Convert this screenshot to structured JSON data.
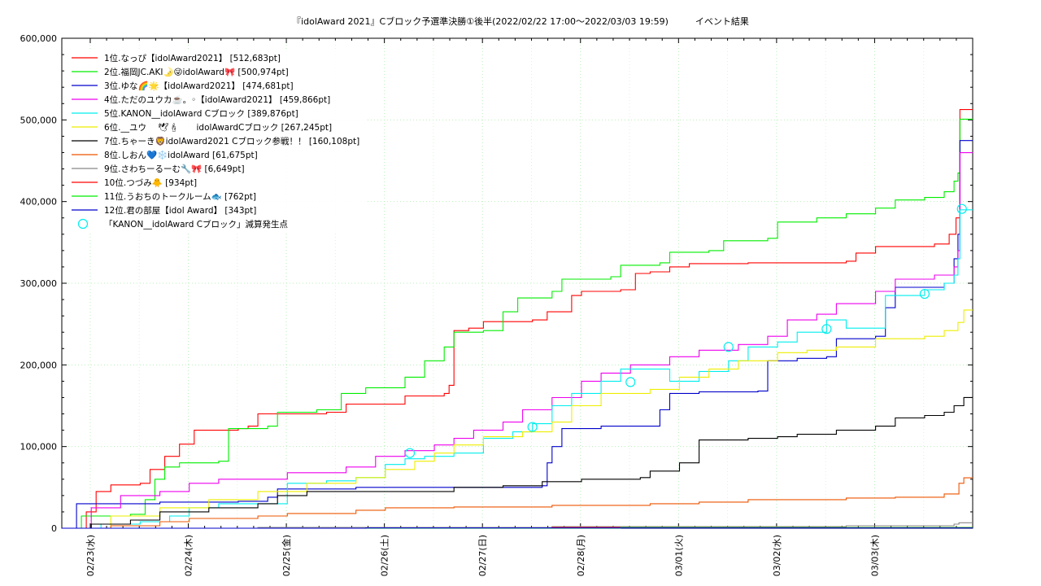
{
  "chart_data": {
    "type": "line",
    "title": "『idolAward 2021』Cブロック予選準決勝①後半(2022/02/22 17:00～2022/03/03 19:59)　　　イベント結果",
    "xlabel": "",
    "ylabel": "",
    "x_tick_labels": [
      "02/23(水)",
      "02/24(木)",
      "02/25(金)",
      "02/26(土)",
      "02/27(日)",
      "02/28(月)",
      "03/01(火)",
      "03/02(水)",
      "03/03(木)"
    ],
    "y_tick_labels": [
      "0",
      "100,000",
      "200,000",
      "300,000",
      "400,000",
      "500,000",
      "600,000"
    ],
    "x_range_days": [
      0,
      9.29
    ],
    "ylim": [
      0,
      600000
    ],
    "grid": true,
    "legend_position": "top-left",
    "series": [
      {
        "name": "1位.なっぴ【idolAward2021】 [512,683pt]",
        "color": "#ff0000",
        "points": [
          [
            0,
            0
          ],
          [
            0.25,
            20000
          ],
          [
            0.35,
            45000
          ],
          [
            0.5,
            53000
          ],
          [
            0.8,
            55000
          ],
          [
            0.9,
            72000
          ],
          [
            1.05,
            88000
          ],
          [
            1.2,
            103000
          ],
          [
            1.35,
            120000
          ],
          [
            1.8,
            122000
          ],
          [
            1.9,
            125000
          ],
          [
            2.0,
            140000
          ],
          [
            2.5,
            140000
          ],
          [
            2.7,
            142000
          ],
          [
            2.9,
            152000
          ],
          [
            3.3,
            152000
          ],
          [
            3.5,
            162000
          ],
          [
            3.9,
            165000
          ],
          [
            3.95,
            175000
          ],
          [
            4.0,
            242000
          ],
          [
            4.15,
            245000
          ],
          [
            4.3,
            253000
          ],
          [
            4.8,
            255000
          ],
          [
            4.95,
            265000
          ],
          [
            5.2,
            285000
          ],
          [
            5.3,
            290000
          ],
          [
            5.7,
            292000
          ],
          [
            5.85,
            312000
          ],
          [
            6.0,
            314000
          ],
          [
            6.2,
            320000
          ],
          [
            6.4,
            324000
          ],
          [
            7.0,
            325000
          ],
          [
            8.0,
            327000
          ],
          [
            8.1,
            337000
          ],
          [
            8.3,
            345000
          ],
          [
            8.9,
            348000
          ],
          [
            9.05,
            360000
          ],
          [
            9.12,
            380000
          ],
          [
            9.16,
            512683
          ],
          [
            9.29,
            512683
          ]
        ]
      },
      {
        "name": "2位.福岡JC.AKI🌛😜idolAward🎀 [500,974pt]",
        "color": "#00ee00",
        "points": [
          [
            0,
            0
          ],
          [
            0.2,
            15000
          ],
          [
            0.7,
            17000
          ],
          [
            0.85,
            35000
          ],
          [
            0.95,
            60000
          ],
          [
            1.05,
            75000
          ],
          [
            1.2,
            80000
          ],
          [
            1.6,
            82000
          ],
          [
            1.7,
            122000
          ],
          [
            2.1,
            125000
          ],
          [
            2.2,
            142000
          ],
          [
            2.6,
            145000
          ],
          [
            2.85,
            165000
          ],
          [
            3.1,
            172000
          ],
          [
            3.5,
            185000
          ],
          [
            3.7,
            205000
          ],
          [
            3.9,
            222000
          ],
          [
            4.0,
            240000
          ],
          [
            4.3,
            242000
          ],
          [
            4.5,
            265000
          ],
          [
            4.65,
            282000
          ],
          [
            5.0,
            290000
          ],
          [
            5.1,
            305000
          ],
          [
            5.6,
            308000
          ],
          [
            5.7,
            322000
          ],
          [
            6.1,
            325000
          ],
          [
            6.2,
            338000
          ],
          [
            6.6,
            340000
          ],
          [
            6.75,
            352000
          ],
          [
            7.2,
            355000
          ],
          [
            7.3,
            375000
          ],
          [
            7.7,
            380000
          ],
          [
            8.0,
            385000
          ],
          [
            8.3,
            392000
          ],
          [
            8.5,
            402000
          ],
          [
            8.8,
            405000
          ],
          [
            9.0,
            412000
          ],
          [
            9.1,
            425000
          ],
          [
            9.14,
            435000
          ],
          [
            9.16,
            500974
          ],
          [
            9.29,
            500974
          ]
        ]
      },
      {
        "name": "3位.ゆな🌈🌟【idolAward2021】 [474,681pt]",
        "color": "#0000cc",
        "points": [
          [
            0,
            0
          ],
          [
            0.15,
            30000
          ],
          [
            1.0,
            32000
          ],
          [
            1.8,
            33000
          ],
          [
            2.1,
            38000
          ],
          [
            2.2,
            48000
          ],
          [
            3.0,
            50000
          ],
          [
            4.0,
            50000
          ],
          [
            4.9,
            52000
          ],
          [
            4.95,
            80000
          ],
          [
            5.0,
            100000
          ],
          [
            5.1,
            122000
          ],
          [
            5.5,
            125000
          ],
          [
            6.0,
            125000
          ],
          [
            6.1,
            145000
          ],
          [
            6.2,
            165000
          ],
          [
            6.5,
            167000
          ],
          [
            7.1,
            168000
          ],
          [
            7.2,
            205000
          ],
          [
            7.5,
            208000
          ],
          [
            7.8,
            210000
          ],
          [
            7.9,
            232000
          ],
          [
            8.3,
            235000
          ],
          [
            8.4,
            270000
          ],
          [
            8.5,
            295000
          ],
          [
            9.0,
            300000
          ],
          [
            9.1,
            330000
          ],
          [
            9.14,
            360000
          ],
          [
            9.16,
            474681
          ],
          [
            9.29,
            474681
          ]
        ]
      },
      {
        "name": "4位.ただのユウカ☕️。◦【idolAward2021】 [459,866pt]",
        "color": "#ee00ee",
        "points": [
          [
            0,
            0
          ],
          [
            0.3,
            25000
          ],
          [
            0.6,
            40000
          ],
          [
            1.0,
            45000
          ],
          [
            1.3,
            55000
          ],
          [
            1.6,
            60000
          ],
          [
            2.3,
            68000
          ],
          [
            2.9,
            75000
          ],
          [
            3.2,
            88000
          ],
          [
            3.5,
            95000
          ],
          [
            3.8,
            102000
          ],
          [
            4.0,
            110000
          ],
          [
            4.2,
            120000
          ],
          [
            4.5,
            130000
          ],
          [
            4.7,
            145000
          ],
          [
            5.0,
            160000
          ],
          [
            5.3,
            180000
          ],
          [
            5.5,
            190000
          ],
          [
            5.8,
            200000
          ],
          [
            6.2,
            210000
          ],
          [
            6.5,
            218000
          ],
          [
            6.9,
            225000
          ],
          [
            7.2,
            235000
          ],
          [
            7.4,
            255000
          ],
          [
            7.7,
            262000
          ],
          [
            7.9,
            275000
          ],
          [
            8.3,
            290000
          ],
          [
            8.5,
            305000
          ],
          [
            8.9,
            310000
          ],
          [
            9.1,
            320000
          ],
          [
            9.14,
            340000
          ],
          [
            9.16,
            459866
          ],
          [
            9.29,
            459866
          ]
        ]
      },
      {
        "name": "5位.KANON__idolAward Cブロック [389,876pt]",
        "color": "#00eeee",
        "points": [
          [
            0,
            0
          ],
          [
            0.4,
            5000
          ],
          [
            0.8,
            8000
          ],
          [
            1.1,
            15000
          ],
          [
            1.3,
            25000
          ],
          [
            1.6,
            30000
          ],
          [
            2.3,
            55000
          ],
          [
            2.7,
            58000
          ],
          [
            3.0,
            62000
          ],
          [
            3.3,
            78000
          ],
          [
            3.5,
            85000
          ],
          [
            3.7,
            88000
          ],
          [
            4.0,
            92000
          ],
          [
            4.3,
            110000
          ],
          [
            4.6,
            118000
          ],
          [
            4.8,
            128000
          ],
          [
            5.0,
            150000
          ],
          [
            5.2,
            165000
          ],
          [
            5.5,
            180000
          ],
          [
            5.7,
            195000
          ],
          [
            6.2,
            180000
          ],
          [
            6.5,
            192000
          ],
          [
            6.8,
            205000
          ],
          [
            7.0,
            222000
          ],
          [
            7.3,
            228000
          ],
          [
            7.5,
            240000
          ],
          [
            7.8,
            255000
          ],
          [
            8.0,
            245000
          ],
          [
            8.4,
            285000
          ],
          [
            8.8,
            292000
          ],
          [
            9.0,
            300000
          ],
          [
            9.1,
            310000
          ],
          [
            9.14,
            330000
          ],
          [
            9.16,
            389876
          ],
          [
            9.29,
            389876
          ]
        ]
      },
      {
        "name": "6位.__ユウ　 🕊🕯　　idolAwardCブロック [267,245pt]",
        "color": "#eeee00",
        "points": [
          [
            0,
            0
          ],
          [
            0.5,
            15000
          ],
          [
            1.0,
            25000
          ],
          [
            1.5,
            35000
          ],
          [
            2.0,
            45000
          ],
          [
            2.5,
            55000
          ],
          [
            3.0,
            62000
          ],
          [
            3.3,
            72000
          ],
          [
            3.6,
            82000
          ],
          [
            3.8,
            92000
          ],
          [
            4.0,
            102000
          ],
          [
            4.3,
            112000
          ],
          [
            4.7,
            118000
          ],
          [
            5.0,
            130000
          ],
          [
            5.2,
            150000
          ],
          [
            5.5,
            165000
          ],
          [
            6.0,
            170000
          ],
          [
            6.3,
            185000
          ],
          [
            6.6,
            195000
          ],
          [
            6.9,
            205000
          ],
          [
            7.3,
            215000
          ],
          [
            7.6,
            218000
          ],
          [
            7.9,
            222000
          ],
          [
            8.3,
            232000
          ],
          [
            8.8,
            235000
          ],
          [
            9.0,
            242000
          ],
          [
            9.14,
            252000
          ],
          [
            9.2,
            267245
          ],
          [
            9.29,
            267245
          ]
        ]
      },
      {
        "name": "7位.ちゃーき🦁idolAward2021 Cブロック参戦！！ [160,108pt]",
        "color": "#000000",
        "points": [
          [
            0,
            0
          ],
          [
            0.3,
            5000
          ],
          [
            0.7,
            10000
          ],
          [
            1.0,
            20000
          ],
          [
            1.5,
            25000
          ],
          [
            2.0,
            30000
          ],
          [
            2.2,
            40000
          ],
          [
            2.5,
            45000
          ],
          [
            3.0,
            45000
          ],
          [
            3.5,
            45000
          ],
          [
            4.0,
            50000
          ],
          [
            4.5,
            52000
          ],
          [
            4.9,
            57000
          ],
          [
            5.3,
            60000
          ],
          [
            5.9,
            62000
          ],
          [
            6.0,
            70000
          ],
          [
            6.3,
            80000
          ],
          [
            6.5,
            108000
          ],
          [
            7.0,
            110000
          ],
          [
            7.3,
            112000
          ],
          [
            7.5,
            115000
          ],
          [
            7.9,
            120000
          ],
          [
            8.3,
            125000
          ],
          [
            8.5,
            135000
          ],
          [
            8.8,
            138000
          ],
          [
            9.0,
            142000
          ],
          [
            9.1,
            150000
          ],
          [
            9.2,
            160108
          ],
          [
            9.29,
            160108
          ]
        ]
      },
      {
        "name": "8位.しおん💙❄️idolAward [61,675pt]",
        "color": "#ee5500",
        "points": [
          [
            0,
            0
          ],
          [
            0.5,
            3000
          ],
          [
            1.0,
            8000
          ],
          [
            1.3,
            12000
          ],
          [
            2.0,
            15000
          ],
          [
            2.3,
            18000
          ],
          [
            3.0,
            22000
          ],
          [
            3.3,
            25000
          ],
          [
            4.0,
            26000
          ],
          [
            5.0,
            28000
          ],
          [
            6.0,
            30000
          ],
          [
            6.5,
            32000
          ],
          [
            7.0,
            35000
          ],
          [
            7.5,
            35000
          ],
          [
            8.0,
            37000
          ],
          [
            8.5,
            38000
          ],
          [
            9.0,
            42000
          ],
          [
            9.15,
            55000
          ],
          [
            9.2,
            61675
          ],
          [
            9.29,
            61675
          ]
        ]
      },
      {
        "name": "9位.さわちーるーむ🔧🎀 [6,649pt]",
        "color": "#888888",
        "points": [
          [
            0,
            0
          ],
          [
            2.0,
            1000
          ],
          [
            5.0,
            2000
          ],
          [
            8.0,
            3000
          ],
          [
            9.1,
            5000
          ],
          [
            9.15,
            6649
          ],
          [
            9.29,
            6649
          ]
        ]
      },
      {
        "name": "10位.つづみ🐥 [934pt]",
        "color": "#ff0000",
        "points": [
          [
            0,
            0
          ],
          [
            4.9,
            0
          ],
          [
            5.0,
            934
          ],
          [
            9.29,
            934
          ]
        ]
      },
      {
        "name": "11位.うおちのトークルーム🐟 [762pt]",
        "color": "#00ee00",
        "points": [
          [
            0,
            0
          ],
          [
            5.6,
            0
          ],
          [
            5.7,
            762
          ],
          [
            9.29,
            762
          ]
        ]
      },
      {
        "name": "12位.君の部屋【idol Award】 [343pt]",
        "color": "#0000cc",
        "points": [
          [
            0,
            0
          ],
          [
            3.0,
            0
          ],
          [
            3.1,
            343
          ],
          [
            9.29,
            343
          ]
        ]
      }
    ],
    "markers": {
      "name": "「KANON__idolAward Cブロック」減算発生点",
      "color": "#00eeee",
      "points": [
        [
          3.55,
          92000
        ],
        [
          4.8,
          124000
        ],
        [
          5.8,
          179000
        ],
        [
          6.8,
          222000
        ],
        [
          7.8,
          244000
        ],
        [
          8.8,
          287000
        ],
        [
          9.18,
          391000
        ]
      ]
    }
  }
}
